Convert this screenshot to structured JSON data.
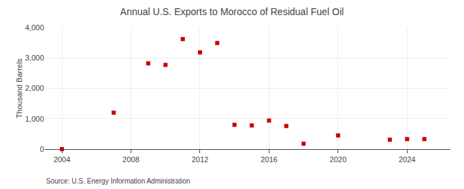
{
  "chart_data": {
    "type": "scatter",
    "title": "Annual U.S. Exports to Morocco of Residual Fuel Oil",
    "ylabel": "Thousand Barrels",
    "annotations": [
      "Source: U.S. Energy Information Administration"
    ],
    "x": [
      2004,
      2007,
      2009,
      2010,
      2011,
      2012,
      2013,
      2014,
      2015,
      2016,
      2017,
      2018,
      2020,
      2023,
      2024,
      2025
    ],
    "values": [
      0,
      1200,
      2820,
      2770,
      3620,
      3180,
      3490,
      800,
      780,
      940,
      760,
      180,
      450,
      310,
      330,
      330
    ],
    "color": "#cc0000",
    "marker": "square",
    "xlim": [
      2003.0,
      2026.5
    ],
    "ylim": [
      0,
      4000
    ],
    "xticks": [
      2004,
      2008,
      2012,
      2016,
      2020,
      2024
    ],
    "yticks": [
      0,
      {
        "value": 1000,
        "label": "1,000"
      },
      {
        "value": 2000,
        "label": "2,000"
      },
      {
        "value": 3000,
        "label": "3,000"
      },
      {
        "value": 4000,
        "label": "4,000"
      }
    ],
    "grid": true
  }
}
